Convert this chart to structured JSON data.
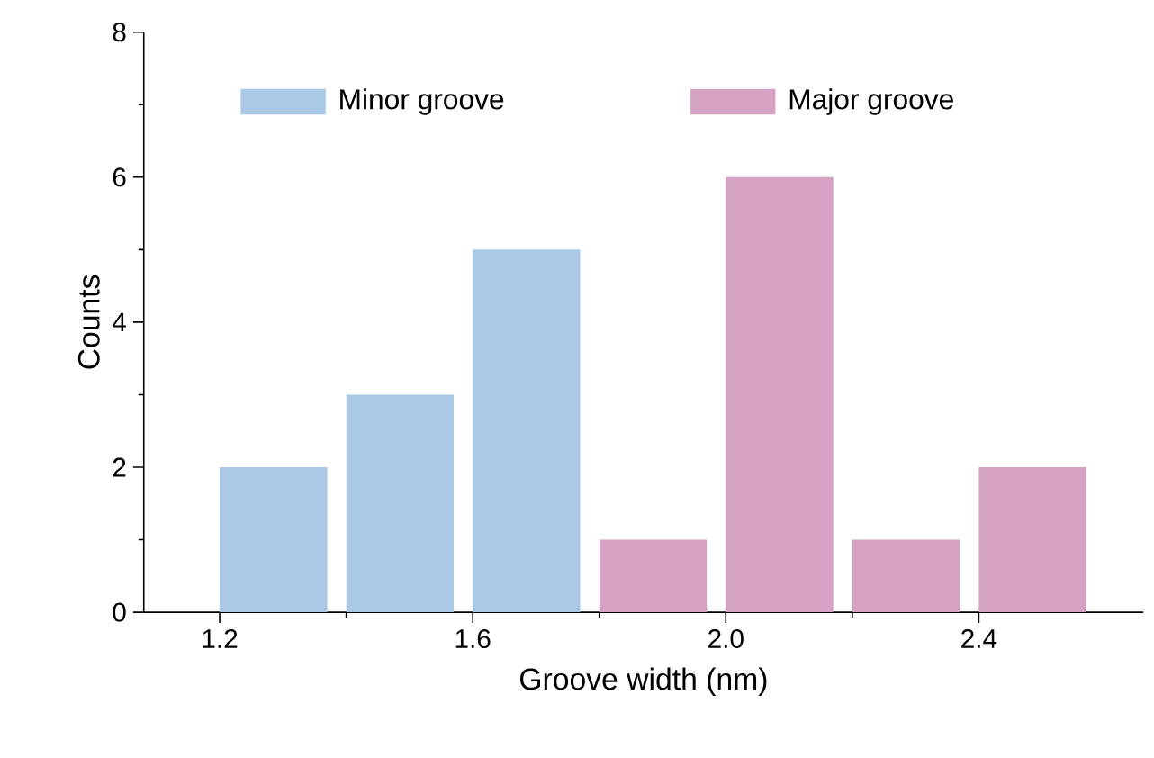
{
  "chart_data": {
    "type": "histogram",
    "xlabel": "Groove width (nm)",
    "ylabel": "Counts",
    "bins": [
      1.2,
      1.4,
      1.6,
      1.8,
      2.0,
      2.2,
      2.4,
      2.6
    ],
    "series": [
      {
        "name": "Minor groove",
        "color": "#a9c9e6",
        "values": [
          2,
          3,
          5,
          null,
          null,
          null,
          null
        ]
      },
      {
        "name": "Major groove",
        "color": "#d6a2c4",
        "values": [
          null,
          null,
          null,
          1,
          6,
          1,
          2
        ]
      }
    ],
    "xlim": [
      1.08,
      2.66
    ],
    "ylim": [
      0,
      8
    ],
    "xticks": [
      {
        "value": 1.2,
        "label": "1.2"
      },
      {
        "value": 1.6,
        "label": "1.6"
      },
      {
        "value": 2.0,
        "label": "2.0"
      },
      {
        "value": 2.4,
        "label": "2.4"
      }
    ],
    "yticks": [
      0,
      2,
      4,
      6,
      8
    ],
    "grid": false,
    "legend": "top"
  }
}
